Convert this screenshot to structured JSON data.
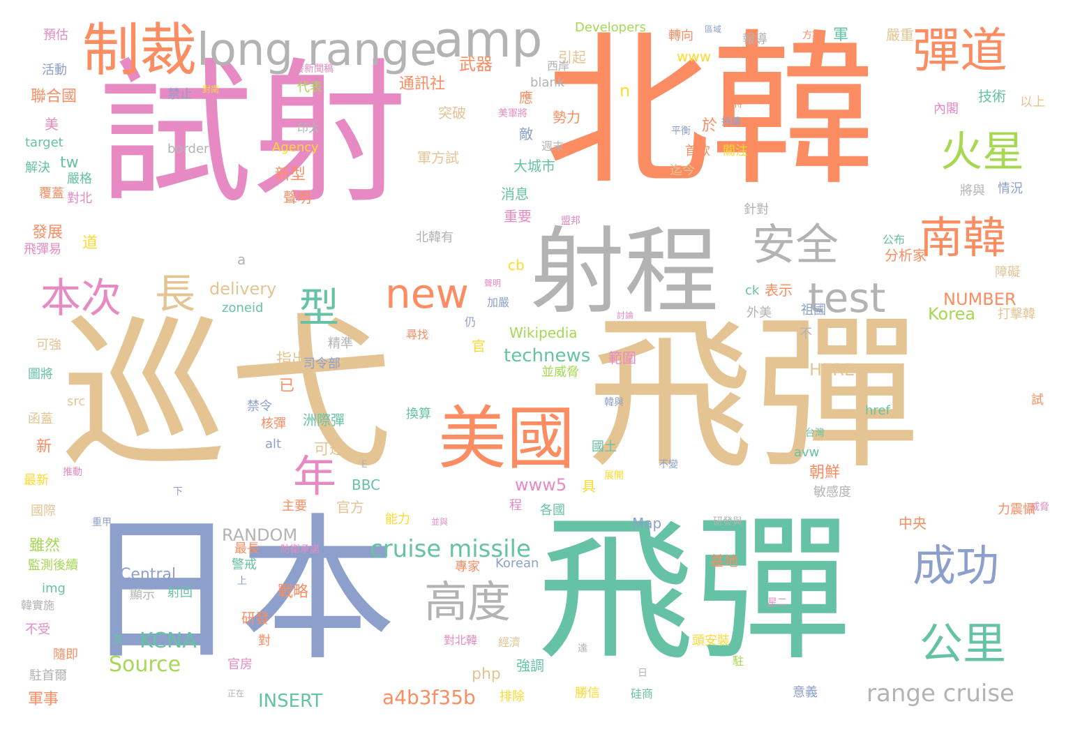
{
  "palette": {
    "orange": "#fc8d62",
    "pink": "#e78ac3",
    "tan": "#e5c494",
    "teal": "#66c2a5",
    "blue": "#8da0cb",
    "grey": "#b3b3b3",
    "green": "#a6d854",
    "yellow": "#ffd92f"
  },
  "words": [
    {
      "text": "北韓",
      "color": "orange"
    },
    {
      "text": "試射",
      "color": "pink"
    },
    {
      "text": "巡弋",
      "color": "tan"
    },
    {
      "text": "飛彈",
      "color": "tan"
    },
    {
      "text": "飛彈",
      "color": "teal"
    },
    {
      "text": "日本",
      "color": "blue"
    },
    {
      "text": "射程",
      "color": "grey"
    },
    {
      "text": "美國",
      "color": "orange"
    },
    {
      "text": "制裁",
      "color": "orange"
    },
    {
      "text": "long range",
      "color": "grey"
    },
    {
      "text": "amp",
      "color": "grey"
    },
    {
      "text": "彈道",
      "color": "orange"
    },
    {
      "text": "火星",
      "color": "green"
    },
    {
      "text": "南韓",
      "color": "orange"
    },
    {
      "text": "安全",
      "color": "grey"
    },
    {
      "text": "new",
      "color": "orange"
    },
    {
      "text": "test",
      "color": "grey"
    },
    {
      "text": "本次",
      "color": "pink"
    },
    {
      "text": "長",
      "color": "tan"
    },
    {
      "text": "型",
      "color": "teal"
    },
    {
      "text": "年",
      "color": "pink"
    },
    {
      "text": "成功",
      "color": "blue"
    },
    {
      "text": "公里",
      "color": "teal"
    },
    {
      "text": "高度",
      "color": "grey"
    },
    {
      "text": "cruise missile",
      "color": "teal"
    },
    {
      "text": "range cruise",
      "color": "grey"
    },
    {
      "text": "KCNA",
      "color": "teal"
    },
    {
      "text": "Source",
      "color": "green"
    },
    {
      "text": "Central",
      "color": "blue"
    },
    {
      "text": "a4b3f35b",
      "color": "orange"
    },
    {
      "text": "INSERT",
      "color": "teal"
    },
    {
      "text": "RANDOM",
      "color": "grey"
    },
    {
      "text": "technews",
      "color": "teal"
    },
    {
      "text": "www5",
      "color": "pink"
    },
    {
      "text": "delivery",
      "color": "tan"
    },
    {
      "text": "NUMBER",
      "color": "orange"
    },
    {
      "text": "HERE",
      "color": "tan"
    },
    {
      "text": "Korea",
      "color": "green"
    },
    {
      "text": "Wikipedia",
      "color": "green"
    },
    {
      "text": "Developers",
      "color": "green"
    },
    {
      "text": "Agency",
      "color": "yellow"
    },
    {
      "text": "www",
      "color": "yellow"
    },
    {
      "text": "blank",
      "color": "grey"
    },
    {
      "text": "border",
      "color": "grey"
    },
    {
      "text": "target",
      "color": "teal"
    },
    {
      "text": "zoneid",
      "color": "teal"
    },
    {
      "text": "tw",
      "color": "teal"
    },
    {
      "text": "cb",
      "color": "yellow"
    },
    {
      "text": "ck",
      "color": "teal"
    },
    {
      "text": "php",
      "color": "tan"
    },
    {
      "text": "img",
      "color": "teal"
    },
    {
      "text": "href",
      "color": "teal"
    },
    {
      "text": "src",
      "color": "tan"
    },
    {
      "text": "alt",
      "color": "blue"
    },
    {
      "text": "avw",
      "color": "teal"
    },
    {
      "text": "BBC",
      "color": "teal"
    },
    {
      "text": "Map",
      "color": "blue"
    },
    {
      "text": "Korean",
      "color": "blue"
    },
    {
      "text": "n",
      "color": "yellow"
    },
    {
      "text": "a",
      "color": "grey"
    },
    {
      "text": "E",
      "color": "grey"
    },
    {
      "text": "聯合國",
      "color": "orange"
    },
    {
      "text": "活動",
      "color": "blue"
    },
    {
      "text": "預估",
      "color": "pink"
    },
    {
      "text": "禁止",
      "color": "blue"
    },
    {
      "text": "對南",
      "color": "yellow"
    },
    {
      "text": "代表",
      "color": "green"
    },
    {
      "text": "通訊社",
      "color": "orange"
    },
    {
      "text": "武器",
      "color": "orange"
    },
    {
      "text": "引起",
      "color": "tan"
    },
    {
      "text": "轉向",
      "color": "orange"
    },
    {
      "text": "區域",
      "color": "blue"
    },
    {
      "text": "報導",
      "color": "grey"
    },
    {
      "text": "方案",
      "color": "orange"
    },
    {
      "text": "軍",
      "color": "teal"
    },
    {
      "text": "嚴重",
      "color": "tan"
    },
    {
      "text": "發新聞稿",
      "color": "pink"
    },
    {
      "text": "西岸",
      "color": "grey"
    },
    {
      "text": "技術",
      "color": "teal"
    },
    {
      "text": "以上",
      "color": "tan"
    },
    {
      "text": "內閣",
      "color": "pink"
    },
    {
      "text": "堅持",
      "color": "orange"
    },
    {
      "text": "持續",
      "color": "blue"
    },
    {
      "text": "印太",
      "color": "grey"
    },
    {
      "text": "美軍將",
      "color": "pink"
    },
    {
      "text": "勢力",
      "color": "orange"
    },
    {
      "text": "突破",
      "color": "tan"
    },
    {
      "text": "應",
      "color": "orange"
    },
    {
      "text": "於",
      "color": "orange"
    },
    {
      "text": "首款",
      "color": "orange"
    },
    {
      "text": "關注",
      "color": "yellow"
    },
    {
      "text": "平衡",
      "color": "blue"
    },
    {
      "text": "敵",
      "color": "blue"
    },
    {
      "text": "週末",
      "color": "grey"
    },
    {
      "text": "軍方試",
      "color": "tan"
    },
    {
      "text": "迄今",
      "color": "tan"
    },
    {
      "text": "美",
      "color": "pink"
    },
    {
      "text": "解決",
      "color": "teal"
    },
    {
      "text": "嚴格",
      "color": "teal"
    },
    {
      "text": "對北",
      "color": "pink"
    },
    {
      "text": "覆蓋",
      "color": "orange"
    },
    {
      "text": "新型",
      "color": "orange"
    },
    {
      "text": "大城市",
      "color": "teal"
    },
    {
      "text": "情況",
      "color": "blue"
    },
    {
      "text": "將與",
      "color": "grey"
    },
    {
      "text": "聲明",
      "color": "orange"
    },
    {
      "text": "消息",
      "color": "teal"
    },
    {
      "text": "針對",
      "color": "grey"
    },
    {
      "text": "重要",
      "color": "pink"
    },
    {
      "text": "盟邦",
      "color": "pink"
    },
    {
      "text": "發展",
      "color": "orange"
    },
    {
      "text": "道",
      "color": "yellow"
    },
    {
      "text": "北韓有",
      "color": "grey"
    },
    {
      "text": "飛彈易",
      "color": "pink"
    },
    {
      "text": "公布",
      "color": "teal"
    },
    {
      "text": "分析家",
      "color": "orange"
    },
    {
      "text": "障礙",
      "color": "tan"
    },
    {
      "text": "聲明",
      "color": "pink"
    },
    {
      "text": "加嚴",
      "color": "blue"
    },
    {
      "text": "表示",
      "color": "orange"
    },
    {
      "text": "外美",
      "color": "grey"
    },
    {
      "text": "祖國",
      "color": "blue"
    },
    {
      "text": "討論",
      "color": "pink"
    },
    {
      "text": "打擊韓",
      "color": "tan"
    },
    {
      "text": "仍",
      "color": "blue"
    },
    {
      "text": "可強",
      "color": "tan"
    },
    {
      "text": "精準",
      "color": "grey"
    },
    {
      "text": "司令部",
      "color": "blue"
    },
    {
      "text": "指出",
      "color": "tan"
    },
    {
      "text": "尋找",
      "color": "orange"
    },
    {
      "text": "官",
      "color": "yellow"
    },
    {
      "text": "範圍",
      "color": "pink"
    },
    {
      "text": "不",
      "color": "grey"
    },
    {
      "text": "已",
      "color": "orange"
    },
    {
      "text": "並威脅",
      "color": "green"
    },
    {
      "text": "試",
      "color": "orange"
    },
    {
      "text": "圖將",
      "color": "teal"
    },
    {
      "text": "禁令",
      "color": "blue"
    },
    {
      "text": "洲際彈",
      "color": "teal"
    },
    {
      "text": "換算",
      "color": "teal"
    },
    {
      "text": "韓與",
      "color": "blue"
    },
    {
      "text": "函蓋",
      "color": "tan"
    },
    {
      "text": "核彈",
      "color": "orange"
    },
    {
      "text": "可達",
      "color": "tan"
    },
    {
      "text": "國土",
      "color": "teal"
    },
    {
      "text": "台灣",
      "color": "teal"
    },
    {
      "text": "新",
      "color": "orange"
    },
    {
      "text": "不變",
      "color": "blue"
    },
    {
      "text": "朝鮮",
      "color": "orange"
    },
    {
      "text": "最新",
      "color": "yellow"
    },
    {
      "text": "推動",
      "color": "pink"
    },
    {
      "text": "展開",
      "color": "yellow"
    },
    {
      "text": "具",
      "color": "yellow"
    },
    {
      "text": "下",
      "color": "blue"
    },
    {
      "text": "敏感度",
      "color": "grey"
    },
    {
      "text": "官方",
      "color": "tan"
    },
    {
      "text": "主要",
      "color": "orange"
    },
    {
      "text": "程",
      "color": "pink"
    },
    {
      "text": "國際",
      "color": "tan"
    },
    {
      "text": "重甲",
      "color": "blue"
    },
    {
      "text": "能力",
      "color": "yellow"
    },
    {
      "text": "並與",
      "color": "pink"
    },
    {
      "text": "各國",
      "color": "teal"
    },
    {
      "text": "威脅",
      "color": "pink"
    },
    {
      "text": "力震懾",
      "color": "orange"
    },
    {
      "text": "中央",
      "color": "orange"
    },
    {
      "text": "研發與",
      "color": "grey"
    },
    {
      "text": "雖然",
      "color": "green"
    },
    {
      "text": "監測後續",
      "color": "green"
    },
    {
      "text": "防衛承諾",
      "color": "pink"
    },
    {
      "text": "最長",
      "color": "orange"
    },
    {
      "text": "警戒",
      "color": "teal"
    },
    {
      "text": "上",
      "color": "blue"
    },
    {
      "text": "專家",
      "color": "orange"
    },
    {
      "text": "基地",
      "color": "orange"
    },
    {
      "text": "戰略",
      "color": "orange"
    },
    {
      "text": "顯示",
      "color": "grey"
    },
    {
      "text": "射回",
      "color": "teal"
    },
    {
      "text": "韓實施",
      "color": "grey"
    },
    {
      "text": "研發",
      "color": "orange"
    },
    {
      "text": "星二",
      "color": "pink"
    },
    {
      "text": "不受",
      "color": "pink"
    },
    {
      "text": "首",
      "color": "teal"
    },
    {
      "text": "對",
      "color": "orange"
    },
    {
      "text": "對北韓",
      "color": "pink"
    },
    {
      "text": "經濟",
      "color": "tan"
    },
    {
      "text": "達",
      "color": "grey"
    },
    {
      "text": "頭安裝",
      "color": "yellow"
    },
    {
      "text": "隨即",
      "color": "orange"
    },
    {
      "text": "官房",
      "color": "pink"
    },
    {
      "text": "強調",
      "color": "teal"
    },
    {
      "text": "駐",
      "color": "green"
    },
    {
      "text": "駐首爾",
      "color": "grey"
    },
    {
      "text": "日",
      "color": "grey"
    },
    {
      "text": "軍事",
      "color": "orange"
    },
    {
      "text": "正在",
      "color": "grey"
    },
    {
      "text": "排除",
      "color": "yellow"
    },
    {
      "text": "勝信",
      "color": "yellow"
    },
    {
      "text": "硅商",
      "color": "teal"
    },
    {
      "text": "意義",
      "color": "blue"
    }
  ]
}
